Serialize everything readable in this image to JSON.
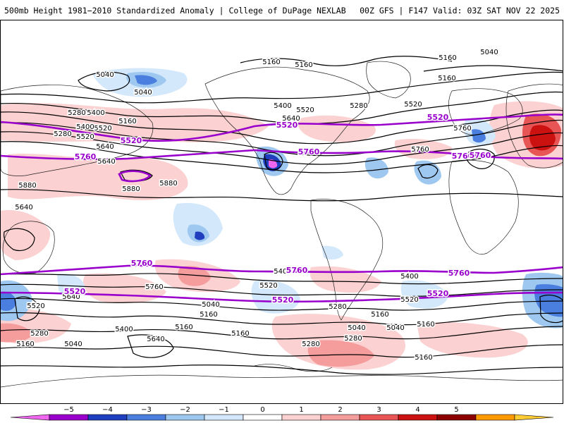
{
  "header": {
    "left_title": "500mb Height 1981−2010 Standardized Anomaly | College of DuPage NEXLAB",
    "right_title": "00Z GFS | F147 Valid: 03Z SAT NOV 22 2025"
  },
  "colorbar": {
    "ticks": [
      "−5",
      "−4",
      "−3",
      "−2",
      "−1",
      "0",
      "1",
      "2",
      "3",
      "4",
      "5"
    ],
    "colors": [
      "#ee66ee",
      "#9900cc",
      "#1f3fbf",
      "#4a7fe0",
      "#9ec8f0",
      "#d3e8fb",
      "#ffffff",
      "#fbd1d1",
      "#f59c9c",
      "#e85555",
      "#cc1111",
      "#8b0000",
      "#ff9900",
      "#ffcc33"
    ]
  },
  "map": {
    "black_contour_labels": [
      "5040",
      "5160",
      "5160",
      "5160",
      "5040",
      "5160",
      "5280",
      "5400",
      "5520",
      "5400",
      "5520",
      "5640",
      "5280",
      "5520",
      "5640",
      "5760",
      "5880",
      "5880",
      "5880",
      "5640",
      "5760",
      "5520",
      "5400",
      "5280",
      "5160",
      "5040",
      "5640",
      "5520",
      "5400",
      "5280",
      "5160",
      "5040",
      "5520",
      "5400",
      "5280",
      "5160",
      "5040",
      "5760",
      "5640",
      "5520",
      "5400",
      "5280",
      "5160",
      "5040",
      "5640",
      "5160",
      "5280",
      "5160",
      "5160",
      "5040",
      "5160"
    ],
    "purple_contour_labels": [
      "5520",
      "5520",
      "5760",
      "5760",
      "5760",
      "5520",
      "5760",
      "5760",
      "5760",
      "5520",
      "5520",
      "5520",
      "5760"
    ]
  }
}
